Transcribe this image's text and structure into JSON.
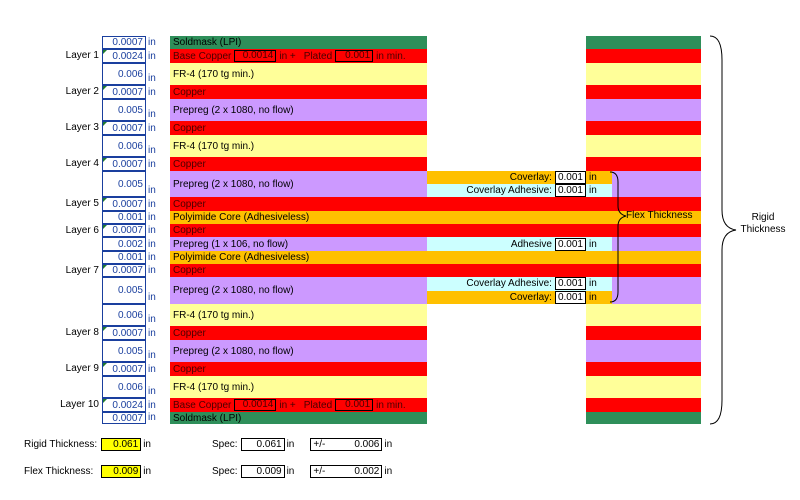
{
  "colors": {
    "soldmask": "#2e8f5a",
    "copper": "#ff0000",
    "fr4": "#ffff99",
    "prepreg": "#cc99ff",
    "polyimide": "#ffc000",
    "adhesive": "#ccffff",
    "yellow_box": "#ffff00"
  },
  "unit": "in",
  "layers": [
    {
      "name": "",
      "thickness": "0.0007",
      "material": "Soldmask (LPI)",
      "type": "soldmask"
    },
    {
      "name": "Layer 1",
      "thickness": "0.0024",
      "material": "Base Copper",
      "type": "copper_plated",
      "base": "0.0014",
      "plated_label": "Plated",
      "plated": "0.001",
      "plus": "in +",
      "min": "in min."
    },
    {
      "name": "",
      "thickness": "0.006",
      "material": "FR-4 (170 tg min.)",
      "type": "fr4"
    },
    {
      "name": "Layer 2",
      "thickness": "0.0007",
      "material": "Copper",
      "type": "copper"
    },
    {
      "name": "",
      "thickness": "0.005",
      "material": "Prepreg (2 x 1080, no flow)",
      "type": "prepreg"
    },
    {
      "name": "Layer 3",
      "thickness": "0.0007",
      "material": "Copper",
      "type": "copper"
    },
    {
      "name": "",
      "thickness": "0.006",
      "material": "FR-4 (170 tg min.)",
      "type": "fr4"
    },
    {
      "name": "Layer 4",
      "thickness": "0.0007",
      "material": "Copper",
      "type": "copper"
    },
    {
      "name": "",
      "thickness": "0.005",
      "material": "Prepreg (2 x 1080, no flow)",
      "type": "prepreg_flex_top"
    },
    {
      "name": "Layer 5",
      "thickness": "0.0007",
      "material": "Copper",
      "type": "copper_full"
    },
    {
      "name": "",
      "thickness": "0.001",
      "material": "Polyimide Core (Adhesiveless)",
      "type": "polyimide_full"
    },
    {
      "name": "Layer 6",
      "thickness": "0.0007",
      "material": "Copper",
      "type": "copper_full"
    },
    {
      "name": "",
      "thickness": "0.002",
      "material": "Prepreg (1 x 106, no flow)",
      "type": "prepreg_adhesive"
    },
    {
      "name": "",
      "thickness": "0.001",
      "material": "Polyimide Core (Adhesiveless)",
      "type": "polyimide_full"
    },
    {
      "name": "Layer 7",
      "thickness": "0.0007",
      "material": "Copper",
      "type": "copper_full"
    },
    {
      "name": "",
      "thickness": "0.005",
      "material": "Prepreg (2 x 1080, no flow)",
      "type": "prepreg_flex_bottom"
    },
    {
      "name": "",
      "thickness": "0.006",
      "material": "FR-4 (170 tg min.)",
      "type": "fr4"
    },
    {
      "name": "Layer 8",
      "thickness": "0.0007",
      "material": "Copper",
      "type": "copper"
    },
    {
      "name": "",
      "thickness": "0.005",
      "material": "Prepreg (2 x 1080, no flow)",
      "type": "prepreg"
    },
    {
      "name": "Layer 9",
      "thickness": "0.0007",
      "material": "Copper",
      "type": "copper"
    },
    {
      "name": "",
      "thickness": "0.006",
      "material": "FR-4 (170 tg min.)",
      "type": "fr4"
    },
    {
      "name": "Layer 10",
      "thickness": "0.0024",
      "material": "Base Copper",
      "type": "copper_plated",
      "base": "0.0014",
      "plated_label": "Plated",
      "plated": "0.001",
      "plus": "in +",
      "min": "in min."
    },
    {
      "name": "",
      "thickness": "0.0007",
      "material": "Soldmask (LPI)",
      "type": "soldmask"
    }
  ],
  "flex": {
    "coverlay_label": "Coverlay:",
    "coverlay_value": "0.001",
    "coverlay_adhesive_label": "Coverlay Adhesive:",
    "coverlay_adhesive_value": "0.001",
    "adhesive_label": "Adhesive",
    "adhesive_value": "0.001",
    "unit": "in"
  },
  "annotations": {
    "flex_thickness": "Flex Thickness",
    "rigid_thickness_line1": "Rigid",
    "rigid_thickness_line2": "Thickness"
  },
  "summary": {
    "rigid_label": "Rigid Thickness:",
    "rigid_value": "0.061",
    "rigid_spec_label": "Spec:",
    "rigid_spec": "0.061",
    "rigid_tol_label": "+/-",
    "rigid_tol": "0.006",
    "flex_label": "Flex Thickness:",
    "flex_value": "0.009",
    "flex_spec_label": "Spec:",
    "flex_spec": "0.009",
    "flex_tol_label": "+/-",
    "flex_tol": "0.002",
    "unit": "in"
  }
}
